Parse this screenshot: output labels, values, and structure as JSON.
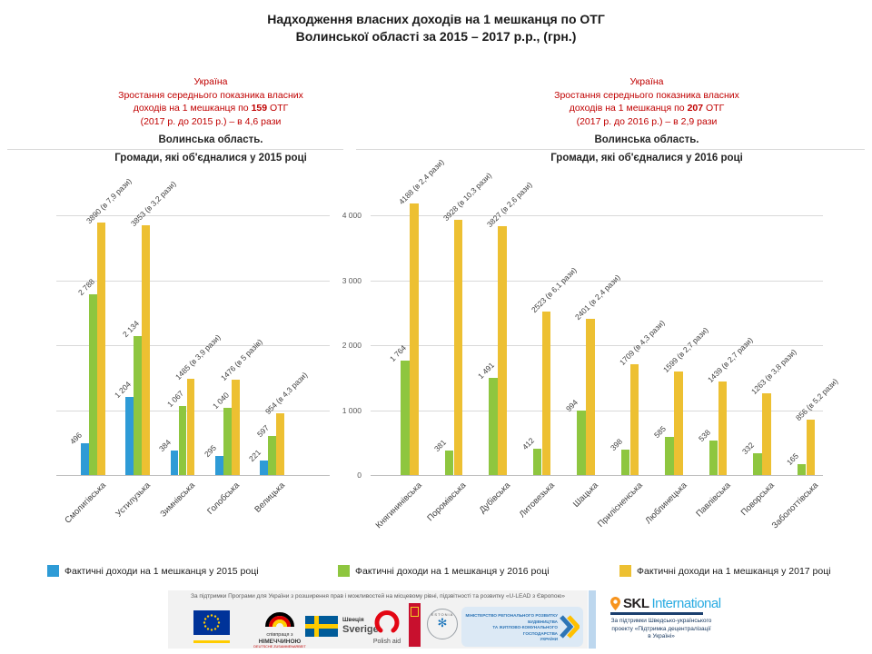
{
  "title": {
    "line1": "Надходження власних доходів на 1 мешканця по ОТГ",
    "line2": "Волинської області за 2015 – 2017 р.р., (грн.)"
  },
  "panel_2015": {
    "note": {
      "line1": "Україна",
      "line2": "Зростання середнього показника власних",
      "line3_prefix": "доходів на 1 мешканця по ",
      "line3_bold": "159",
      "line3_suffix": " ОТГ",
      "line4": "(2017 р. до 2015 р.) – в 4,6 рази"
    },
    "region": "Волинська  область.",
    "subtitle": "Громади, які об'єдналися у 2015 році"
  },
  "panel_2016": {
    "note": {
      "line1": "Україна",
      "line2": "Зростання середнього показника власних",
      "line3_prefix": "доходів на 1 мешканця по ",
      "line3_bold": "207",
      "line3_suffix": " ОТГ",
      "line4": "(2017 р. до 2016 р.) – в 2,9 рази"
    },
    "region": "Волинська  область.",
    "subtitle": "Громади, які об'єдналися у 2016 році"
  },
  "chart_data": [
    {
      "type": "bar",
      "title": "Волинська область. Громади, які об'єдналися у 2015 році",
      "categories": [
        "Смолигівська",
        "Устилузька",
        "Зимнівська",
        "Голобська",
        "Велицька"
      ],
      "series": [
        {
          "name": "Фактичні доходи на 1 мешканця у 2015 році",
          "color": "#2E9BD6",
          "values": [
            496,
            1204,
            384,
            295,
            221
          ],
          "labels": [
            "496",
            "1 204",
            "384",
            "295",
            "221"
          ]
        },
        {
          "name": "Фактичні доходи на 1 мешканця у 2016 році",
          "color": "#8EC63F",
          "values": [
            2788,
            2134,
            1067,
            1040,
            597
          ],
          "labels": [
            "2 788",
            "2 134",
            "1 067",
            "1 040",
            "597"
          ]
        },
        {
          "name": "Фактичні доходи на 1 мешканця у 2017 році",
          "color": "#EDC032",
          "values": [
            3890,
            3853,
            1485,
            1476,
            954
          ],
          "labels": [
            "3890 (в 7,9 рази)",
            "3853 (в 3,2 рази)",
            "1485 (в 3,9 рази)",
            "1476 (в 5 разів)",
            "954 (в 4,3 рази)"
          ]
        }
      ],
      "ylim": [
        0,
        4400
      ],
      "gridlines": [
        1000,
        2000,
        3000,
        4000
      ],
      "grid": true,
      "yticks_shown": false
    },
    {
      "type": "bar",
      "title": "Волинська область. Громади, які об'єдналися у 2016 році",
      "categories": [
        "Княгининівська",
        "Поромівська",
        "Дубівська",
        "Литовезька",
        "Шацька",
        "Прилісненська",
        "Люблинецька",
        "Павлівська",
        "Поворська",
        "Заболоттівська"
      ],
      "series": [
        {
          "name": "Фактичні доходи на 1 мешканця у 2016 році",
          "color": "#8EC63F",
          "values": [
            1764,
            381,
            1491,
            412,
            994,
            398,
            585,
            538,
            332,
            165
          ],
          "labels": [
            "1 764",
            "381",
            "1 491",
            "412",
            "994",
            "398",
            "585",
            "538",
            "332",
            "165"
          ]
        },
        {
          "name": "Фактичні доходи на 1 мешканця у 2017 році",
          "color": "#EDC032",
          "values": [
            4188,
            3928,
            3827,
            2523,
            2401,
            1709,
            1599,
            1439,
            1263,
            856
          ],
          "labels": [
            "4188 (в 2,4 рази)",
            "3928 (в 10,3 рази)",
            "3827 (в 2,6 рази)",
            "2523 (в 6,1 рази)",
            "2401 (в 2,4 рази)",
            "1709 (в 4,3 рази)",
            "1599 (в 2,7 рази)",
            "1439 (в 2,7 рази)",
            "1263 (в 3,8 рази)",
            "856 (в 5,2 рази)"
          ]
        }
      ],
      "ylim": [
        0,
        4400
      ],
      "gridlines": [
        1000,
        2000,
        3000,
        4000
      ],
      "grid": true,
      "yticks_shown": true,
      "ytick_labels": [
        "0",
        "1 000",
        "2 000",
        "3 000",
        "4 000"
      ],
      "ytick_values": [
        0,
        1000,
        2000,
        3000,
        4000
      ]
    }
  ],
  "legend": [
    {
      "label": "Фактичні доходи на 1 мешканця у 2015 році",
      "color": "#2E9BD6"
    },
    {
      "label": "Фактичні доходи на 1 мешканця у 2016 році",
      "color": "#8EC63F"
    },
    {
      "label": "Фактичні доходи на 1 мешканця у 2017 році",
      "color": "#EDC032"
    }
  ],
  "footer": {
    "caption": "За підтримки Програми для України з розширення прав і можливостей на місцевому рівні, підзвітності та розвитку «U-LEAD з Європою»",
    "germany": {
      "line1": "співпраця з",
      "line2": "НІМЕЧЧИНОЮ",
      "line3": "DEUTSCHE ZUSAMMENARBEIT"
    },
    "sweden": {
      "line1": "Швеція",
      "line2": "Sverige"
    },
    "polish_aid": "Polish aid",
    "estonia": "ESTONIA",
    "ministry": {
      "line1": "МІНІСТЕРСТВО РЕГІОНАЛЬНОГО РОЗВИТКУ",
      "line2": "БУДІВНИЦТВА",
      "line3": "ТА ЖИТЛОВО-КОМУНАЛЬНОГО ГОСПОДАРСТВА",
      "line4": "УКРАЇНИ"
    },
    "skl": {
      "brand_bold": "SKL",
      "brand_light": "International",
      "sub1": "За підтримки Шведсько-українського",
      "sub2": "проекту «Підтримка децентралізації",
      "sub3": "в Україні»"
    }
  }
}
